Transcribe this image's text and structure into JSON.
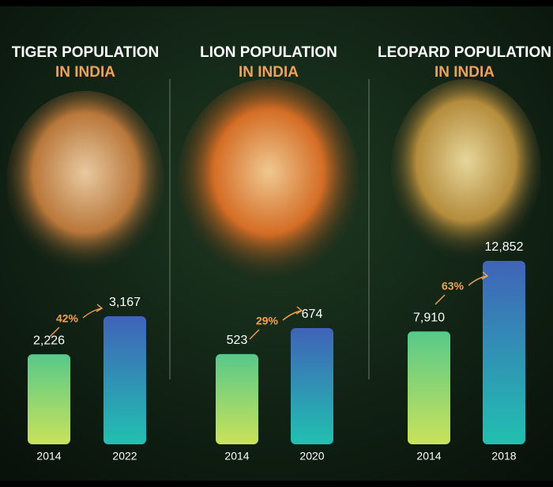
{
  "chart_data": [
    {
      "type": "bar",
      "title": "TIGER POPULATION",
      "subtitle": "IN INDIA",
      "categories": [
        "2014",
        "2022"
      ],
      "values": [
        2226,
        3167
      ],
      "value_labels": [
        "2,226",
        "3,167"
      ],
      "annotation": "42%",
      "colors": [
        "#57c98a",
        "#4063b8"
      ]
    },
    {
      "type": "bar",
      "title": "LION POPULATION",
      "subtitle": "IN INDIA",
      "categories": [
        "2014",
        "2020"
      ],
      "values": [
        523,
        674
      ],
      "value_labels": [
        "523",
        "674"
      ],
      "annotation": "29%",
      "colors": [
        "#57c98a",
        "#4063b8"
      ]
    },
    {
      "type": "bar",
      "title": "LEOPARD POPULATION",
      "subtitle": "IN INDIA",
      "categories": [
        "2014",
        "2018"
      ],
      "values": [
        7910,
        12852
      ],
      "value_labels": [
        "7,910",
        "12,852"
      ],
      "annotation": "63%",
      "colors": [
        "#57c98a",
        "#4063b8"
      ]
    }
  ]
}
